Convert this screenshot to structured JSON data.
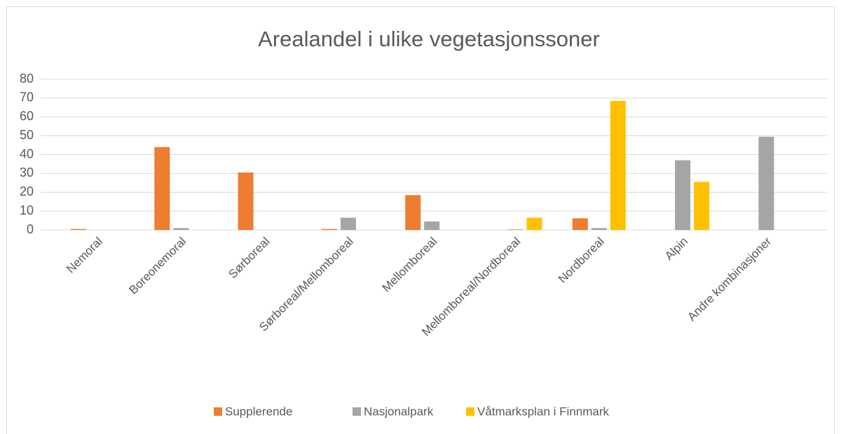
{
  "chart_data": {
    "type": "bar",
    "title": "Arealandel i ulike vegetasjonssoner",
    "categories": [
      "Nemoral",
      "Boreonemoral",
      "Sørboreal",
      "Sørboreal/Mellomboreal",
      "Mellomboreal",
      "Mellomboreal/Nordboreal",
      "Nordboreal",
      "Alpin",
      "Andre kombinasjoner"
    ],
    "series": [
      {
        "name": "Supplerende",
        "color": "#ed7d31",
        "values": [
          0.5,
          44,
          30.5,
          0.5,
          18.5,
          0,
          6.2,
          0,
          0
        ]
      },
      {
        "name": "Nasjonalpark",
        "color": "#a5a5a5",
        "values": [
          0,
          1,
          0,
          6.5,
          4.5,
          0.3,
          1,
          37,
          49.5
        ]
      },
      {
        "name": "Våtmarksplan i Finnmark",
        "color": "#ffc000",
        "values": [
          0,
          0,
          0,
          0,
          0,
          6.5,
          68.5,
          25.5,
          0
        ]
      }
    ],
    "ylim": [
      0,
      80
    ],
    "yticks": [
      0,
      10,
      20,
      30,
      40,
      50,
      60,
      70,
      80
    ],
    "grid": true,
    "legend": "bottom"
  }
}
